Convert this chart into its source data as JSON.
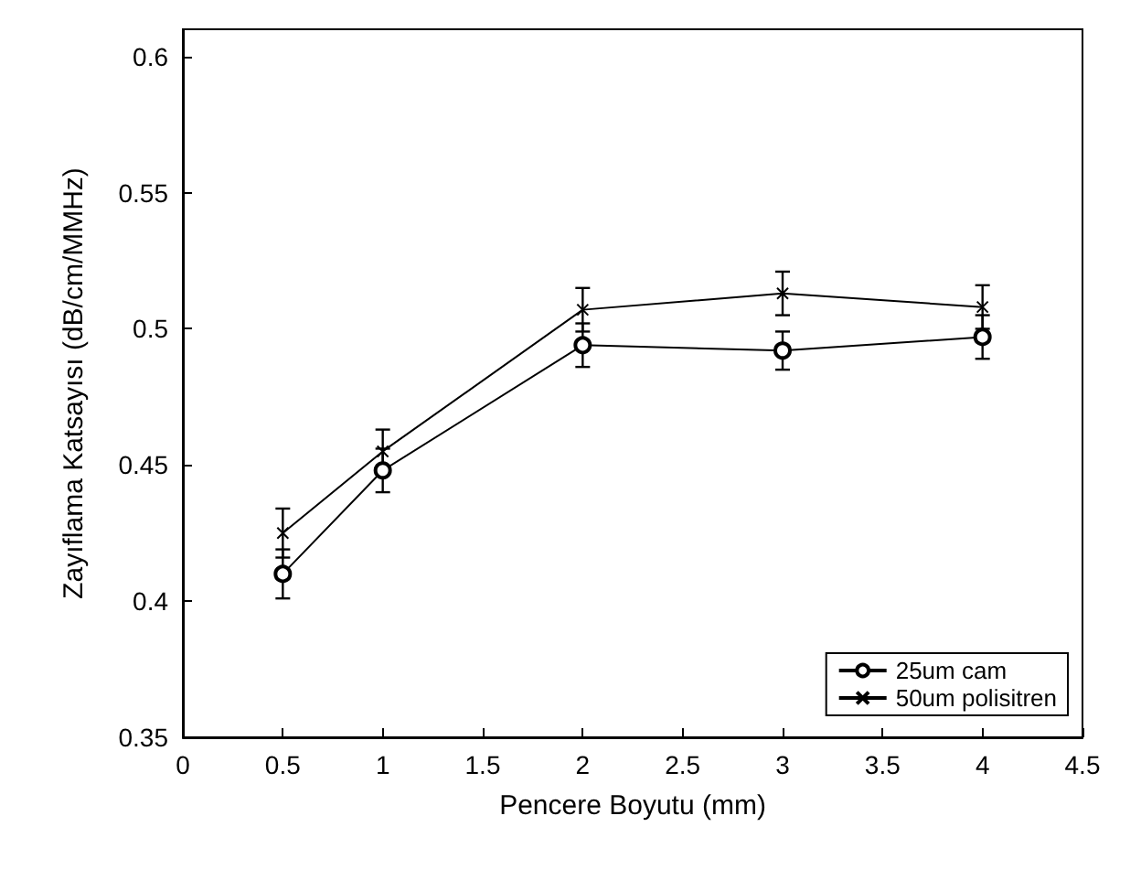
{
  "chart_data": {
    "type": "line",
    "xlabel": "Pencere Boyutu (mm)",
    "ylabel": "Zayıflama Katsayısı (dB/cm/MMHz)",
    "x": [
      0.5,
      1,
      2,
      3,
      4
    ],
    "series": [
      {
        "name": "25um cam",
        "color": "#000000",
        "marker": "circle",
        "values": [
          0.41,
          0.448,
          0.494,
          0.492,
          0.497
        ],
        "errors": [
          0.009,
          0.008,
          0.008,
          0.007,
          0.008
        ]
      },
      {
        "name": "50um polisitren",
        "color": "#000000",
        "marker": "cross",
        "values": [
          0.425,
          0.455,
          0.507,
          0.513,
          0.508
        ],
        "errors": [
          0.009,
          0.008,
          0.008,
          0.008,
          0.008
        ]
      }
    ],
    "xlim": [
      0,
      4.5
    ],
    "xticks": [
      0,
      0.5,
      1,
      1.5,
      2,
      2.5,
      3,
      3.5,
      4,
      4.5
    ],
    "ylim": [
      0.35,
      0.61
    ],
    "yticks": [
      0.35,
      0.4,
      0.45,
      0.5,
      0.55,
      0.6
    ],
    "legend": "bottom right",
    "grid": false
  }
}
